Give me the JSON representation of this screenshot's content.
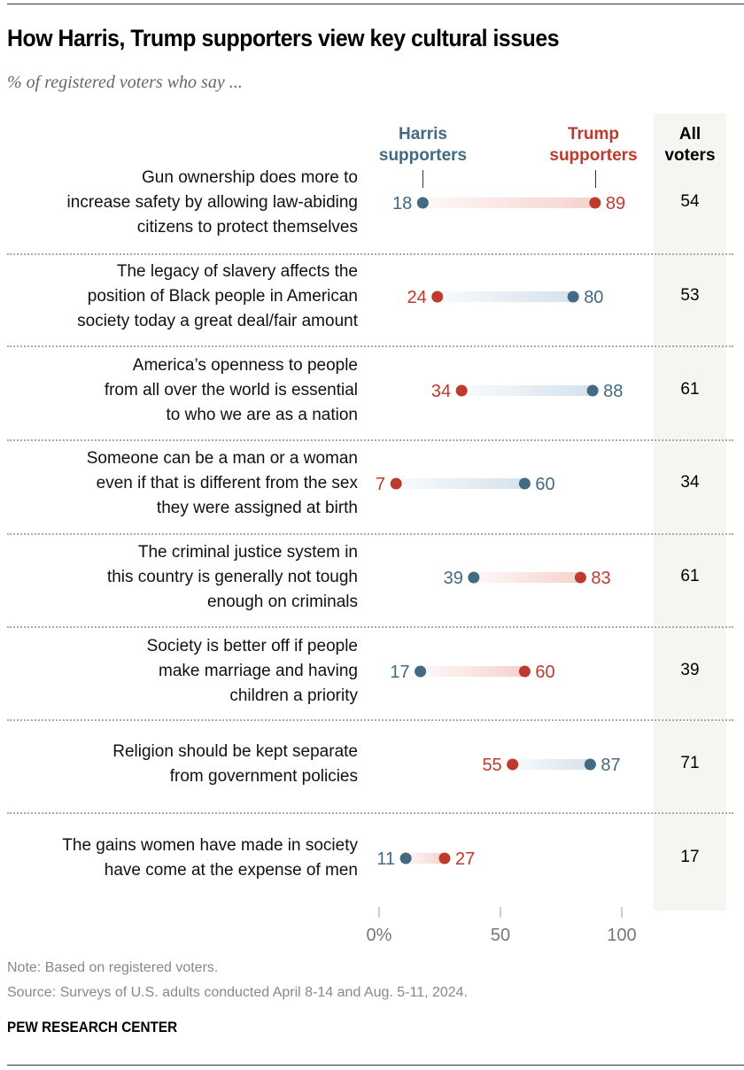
{
  "chart_data": {
    "type": "dot-range",
    "title": "How Harris, Trump supporters view key cultural issues",
    "subtitle": "% of registered voters who say ...",
    "series_labels": {
      "harris": "Harris supporters",
      "trump": "Trump supporters",
      "all": "All voters"
    },
    "colors": {
      "harris": "#436983",
      "trump": "#bd3a2c",
      "harris_bar": "#d6e2ec",
      "trump_bar": "#f6d2cd"
    },
    "xlim": [
      0,
      100
    ],
    "xticks": [
      "0%",
      "50",
      "100"
    ],
    "tick_values": [
      0,
      50,
      100
    ],
    "rows": [
      {
        "label": [
          "Gun ownership does more to",
          "increase safety by allowing law-abiding",
          "citizens to protect themselves"
        ],
        "harris": 18,
        "trump": 89,
        "all": 54
      },
      {
        "label": [
          "The legacy of slavery affects the",
          "position of Black people in American",
          "society today a great deal/fair amount"
        ],
        "harris": 80,
        "trump": 24,
        "all": 53
      },
      {
        "label": [
          "America’s openness to people",
          "from all over the world is essential",
          "to who we are as a nation"
        ],
        "harris": 88,
        "trump": 34,
        "all": 61
      },
      {
        "label": [
          "Someone can be a man or a woman",
          "even if that is different from the sex",
          "they were assigned at birth"
        ],
        "harris": 60,
        "trump": 7,
        "all": 34
      },
      {
        "label": [
          "The criminal justice system in",
          "this country is generally not tough",
          "enough on criminals"
        ],
        "harris": 39,
        "trump": 83,
        "all": 61
      },
      {
        "label": [
          "Society is better off if people",
          "make marriage and having",
          "children a priority"
        ],
        "harris": 17,
        "trump": 60,
        "all": 39
      },
      {
        "label": [
          "Religion should be kept separate",
          "from government policies"
        ],
        "harris": 87,
        "trump": 55,
        "all": 71
      },
      {
        "label": [
          "The gains women have made in society",
          "have come at the expense of men"
        ],
        "harris": 11,
        "trump": 27,
        "all": 17
      }
    ]
  },
  "header": {
    "harris_1": "Harris",
    "harris_2": "supporters",
    "trump_1": "Trump",
    "trump_2": "supporters",
    "all_1": "All",
    "all_2": "voters"
  },
  "footer": {
    "note": "Note: Based on registered voters.",
    "source": "Source: Surveys of U.S. adults conducted April 8-14 and Aug. 5-11, 2024.",
    "brand": "PEW RESEARCH CENTER"
  }
}
